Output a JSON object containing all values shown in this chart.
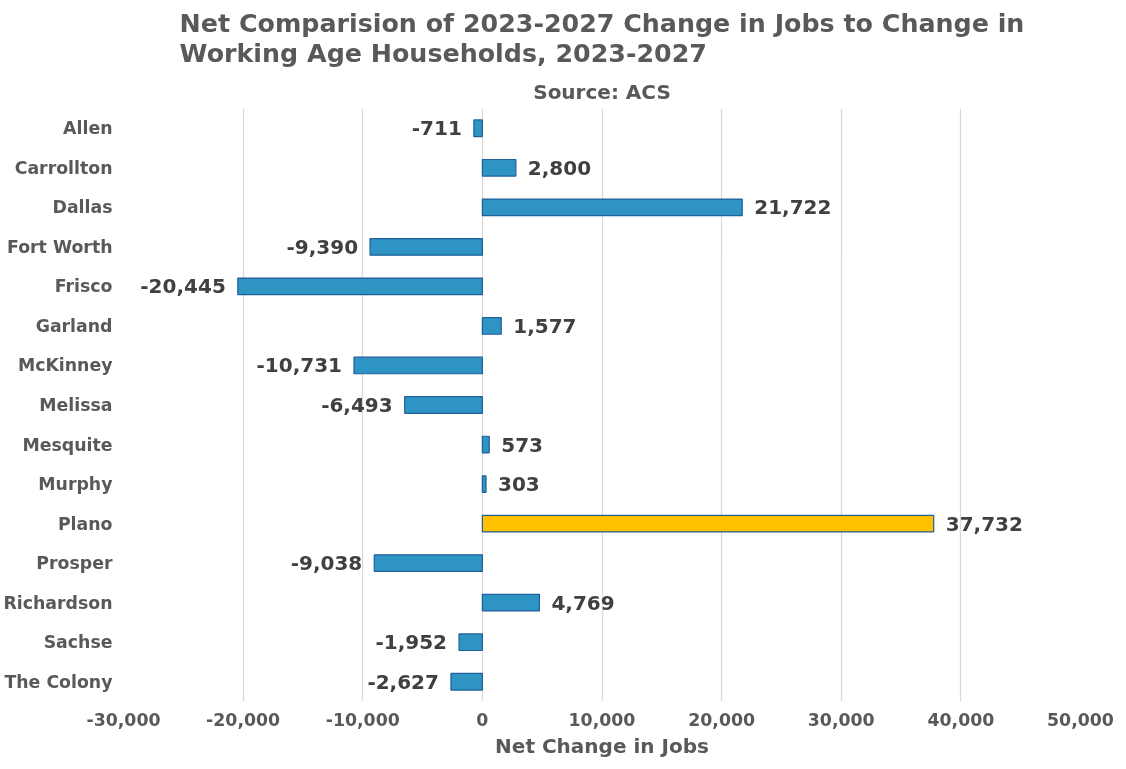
{
  "chart_data": {
    "type": "bar",
    "orientation": "horizontal",
    "title": "Net Comparision of 2023-2027 Change in Jobs to Change in Working Age Households, 2023-2027",
    "subtitle": "Source: ACS",
    "xlabel": "Net Change in Jobs",
    "categories": [
      "Allen",
      "Carrollton",
      "Dallas",
      "Fort Worth",
      "Frisco",
      "Garland",
      "McKinney",
      "Melissa",
      "Mesquite",
      "Murphy",
      "Plano",
      "Prosper",
      "Richardson",
      "Sachse",
      "The Colony"
    ],
    "values": [
      -711,
      2800,
      21722,
      -9390,
      -20445,
      1577,
      -10731,
      -6493,
      573,
      303,
      37732,
      -9038,
      4769,
      -1952,
      -2627
    ],
    "colors": [
      "#2e94c4",
      "#2e94c4",
      "#2e94c4",
      "#2e94c4",
      "#2e94c4",
      "#2e94c4",
      "#2e94c4",
      "#2e94c4",
      "#2e94c4",
      "#2e94c4",
      "#ffc000",
      "#2e94c4",
      "#2e94c4",
      "#2e94c4",
      "#2e94c4"
    ],
    "xlim": [
      -30000,
      50000
    ],
    "xticks": [
      {
        "value": -30000,
        "label": "-30,000"
      },
      {
        "value": -20000,
        "label": "-20,000"
      },
      {
        "value": -10000,
        "label": "-10,000"
      },
      0,
      {
        "value": 10000,
        "label": "10,000"
      },
      {
        "value": 20000,
        "label": "20,000"
      },
      {
        "value": 30000,
        "label": "30,000"
      },
      {
        "value": 40000,
        "label": "40,000"
      },
      {
        "value": 50000,
        "label": "50,000"
      }
    ],
    "value_labels": [
      "-711",
      "2,800",
      "21,722",
      "-9,390",
      "-20,445",
      "1,577",
      "-10,731",
      "-6,493",
      "573",
      "303",
      "37,732",
      "-9,038",
      "4,769",
      "-1,952",
      "-2,627"
    ],
    "grid": "x"
  }
}
